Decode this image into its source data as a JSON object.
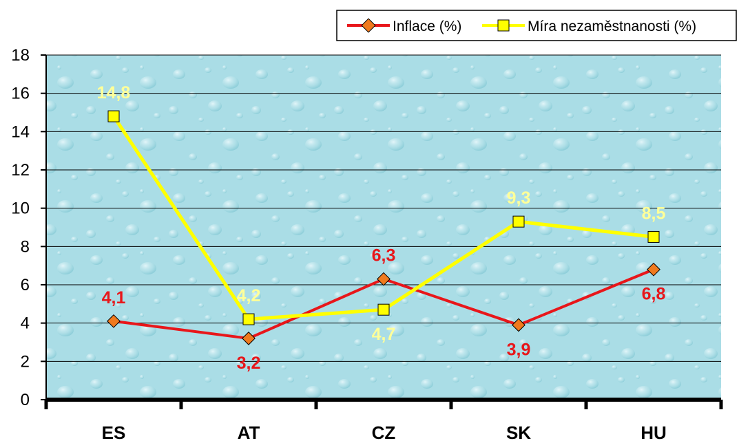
{
  "chart_data": {
    "type": "line",
    "categories": [
      "ES",
      "AT",
      "CZ",
      "SK",
      "HU"
    ],
    "series": [
      {
        "name": "Inflace (%)",
        "values": [
          4.1,
          3.2,
          6.3,
          3.9,
          6.8
        ],
        "labels": [
          "4,1",
          "3,2",
          "6,3",
          "3,9",
          "6,8"
        ],
        "color": "#e8161a",
        "marker": "diamond",
        "marker_color": "#f07a1e"
      },
      {
        "name": "Míra nezaměstnanosti (%)",
        "values": [
          14.8,
          4.2,
          4.7,
          9.3,
          8.5
        ],
        "labels": [
          "14,8",
          "4,2",
          "4,7",
          "9,3",
          "8,5"
        ],
        "color": "#ffff00",
        "marker": "square",
        "marker_color": "#ffff00",
        "label_color": "#ffff99"
      }
    ],
    "yticks": [
      "0",
      "2",
      "4",
      "6",
      "8",
      "10",
      "12",
      "14",
      "16",
      "18"
    ],
    "ylim": [
      0,
      18
    ],
    "grid": true,
    "legend": "top-right",
    "background": "#a9dde6"
  }
}
